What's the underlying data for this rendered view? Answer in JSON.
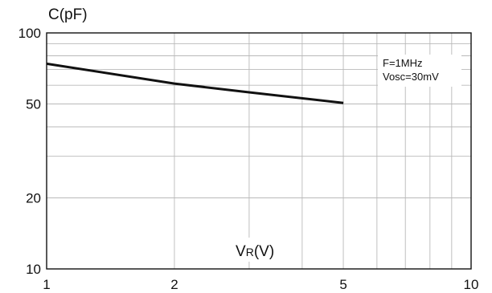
{
  "chart_data": {
    "type": "line",
    "xscale": "log",
    "yscale": "log",
    "xlim": [
      1,
      10
    ],
    "ylim": [
      10,
      100
    ],
    "ylabel": "C(pF)",
    "xlabel": {
      "main": "V",
      "sub": "R",
      "unit": "(V)"
    },
    "xticks": [
      {
        "value": 1,
        "label": "1"
      },
      {
        "value": 2,
        "label": "2"
      },
      {
        "value": 5,
        "label": "5"
      },
      {
        "value": 10,
        "label": "10"
      }
    ],
    "yticks": [
      {
        "value": 10,
        "label": "10"
      },
      {
        "value": 20,
        "label": "20"
      },
      {
        "value": 50,
        "label": "50"
      },
      {
        "value": 100,
        "label": "100"
      }
    ],
    "grid": true,
    "annotations": [
      "F=1MHz",
      "Vosc=30mV"
    ],
    "series": [
      {
        "x": [
          1,
          2,
          3,
          5
        ],
        "y": [
          74,
          61,
          56,
          50.5
        ],
        "color": "#111111"
      }
    ]
  }
}
